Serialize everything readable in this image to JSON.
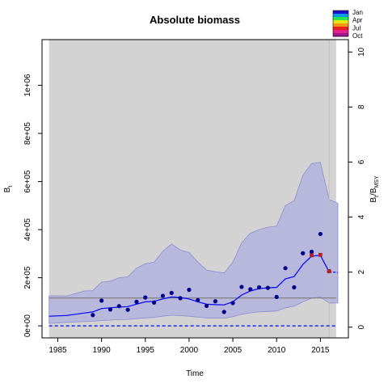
{
  "chart_data": {
    "type": "line",
    "title": "Absolute biomass",
    "xlabel": "Time",
    "ylabel": "B",
    "ylabel_sub": "t",
    "y2label": "B",
    "y2label_sub": "t",
    "y2label_mid": "/B",
    "y2label_mid_sub": "MSY",
    "xlim": [
      1983.2,
      2018.2
    ],
    "ylim": [
      -50000,
      1190000
    ],
    "y2lim": [
      -0.39,
      10.45
    ],
    "x_ticks": [
      1985,
      1990,
      1995,
      2000,
      2005,
      2010,
      2015
    ],
    "x_tick_labels": [
      "1985",
      "1990",
      "1995",
      "2000",
      "2005",
      "2010",
      "2015"
    ],
    "y_ticks": [
      0,
      200000,
      400000,
      600000,
      800000,
      1000000
    ],
    "y_tick_labels": [
      "0e+00",
      "2e+05",
      "4e+05",
      "6e+05",
      "8e+05",
      "1e+06"
    ],
    "y2_ticks": [
      0,
      2,
      4,
      6,
      8,
      10
    ],
    "y2_tick_labels": [
      "0",
      "2",
      "4",
      "6",
      "8",
      "10"
    ],
    "shade_region": [
      1984,
      2016.8
    ],
    "forecast_start": 2016,
    "bmsy_level": 116000,
    "zero_level": 0,
    "ci_x": [
      1984,
      1986,
      1988,
      1989,
      1990,
      1991,
      1992,
      1993,
      1994,
      1995,
      1996,
      1997,
      1998,
      1999,
      2000,
      2001,
      2002,
      2003,
      2004,
      2005,
      2006,
      2007,
      2008,
      2009,
      2010,
      2011,
      2012,
      2013,
      2014,
      2015,
      2016,
      2017
    ],
    "ci_upper": [
      125000,
      124000,
      145000,
      146000,
      182000,
      186000,
      200000,
      204000,
      240000,
      258000,
      265000,
      310000,
      340000,
      315000,
      305000,
      265000,
      232000,
      225000,
      220000,
      265000,
      345000,
      385000,
      400000,
      410000,
      415000,
      500000,
      520000,
      625000,
      675000,
      680000,
      525000,
      510000
    ],
    "ci_lower": [
      10000,
      15000,
      18000,
      19000,
      22000,
      24000,
      26000,
      27000,
      30000,
      33000,
      35000,
      40000,
      44000,
      42000,
      40000,
      36000,
      33000,
      32000,
      32000,
      38000,
      48000,
      54000,
      58000,
      60000,
      62000,
      75000,
      82000,
      100000,
      115000,
      120000,
      95000,
      95000
    ],
    "series": [
      {
        "x": [
          1984,
          1986,
          1988,
          1989,
          1990,
          1991,
          1992,
          1993,
          1994,
          1995,
          1996,
          1997,
          1998,
          1999,
          2000,
          2001,
          2002,
          2003,
          2004,
          2005,
          2006,
          2007,
          2008,
          2009,
          2010,
          2011,
          2012,
          2013,
          2014,
          2015,
          2016
        ],
        "values": [
          40000,
          43000,
          53000,
          58000,
          72000,
          75000,
          78000,
          80000,
          90000,
          100000,
          102000,
          112000,
          120000,
          118000,
          112000,
          100000,
          90000,
          88000,
          87000,
          100000,
          128000,
          145000,
          155000,
          158000,
          160000,
          195000,
          205000,
          255000,
          290000,
          293000,
          225000
        ]
      },
      {
        "x": [
          2016,
          2017
        ],
        "values": [
          225000,
          222000
        ]
      }
    ],
    "observations": {
      "x": [
        1989,
        1990,
        1991,
        1992,
        1993,
        1994,
        1995,
        1996,
        1997,
        1998,
        1999,
        2000,
        2001,
        2002,
        2003,
        2004,
        2005,
        2006,
        2007,
        2008,
        2009,
        2010,
        2011,
        2012,
        2013,
        2014,
        2015,
        2016
      ],
      "values": [
        45000,
        105000,
        68000,
        82000,
        67000,
        100000,
        118000,
        97000,
        125000,
        137000,
        115000,
        150000,
        107000,
        83000,
        102000,
        58000,
        95000,
        162000,
        152000,
        160000,
        158000,
        120000,
        240000,
        160000,
        302000,
        308000,
        382000,
        227000
      ]
    },
    "highlight_points": {
      "x": [
        2014,
        2015,
        2016
      ],
      "values": [
        293000,
        295000,
        227000
      ]
    },
    "season_legend": {
      "labels": [
        "Jan",
        "Apr",
        "Jul",
        "Oct"
      ],
      "colors": [
        "#1e10c8",
        "#0a9be6",
        "#28e650",
        "#e6e614",
        "#f09614",
        "#e61e1e",
        "#e61e8c",
        "#a0148c"
      ]
    },
    "colors": {
      "panel_bg": "#d3d3d3",
      "ci_fill": "#b8b8dc",
      "ci_line": "#8c8cd2",
      "line": "#0000ff",
      "points": "#00008b",
      "highlight": "#b22222",
      "bmsy_line": "#808080"
    }
  }
}
